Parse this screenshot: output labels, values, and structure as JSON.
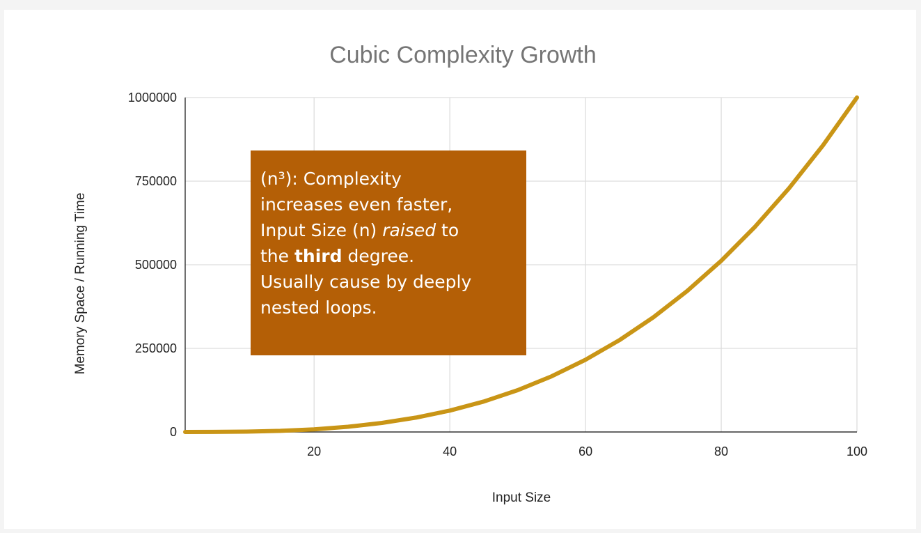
{
  "chart_data": {
    "type": "line",
    "title": "Cubic Complexity Growth",
    "xlabel": "Input Size",
    "ylabel": "Memory Space / Running Time",
    "xlim": [
      1,
      100
    ],
    "ylim": [
      0,
      1000000
    ],
    "x_ticks": [
      "20",
      "40",
      "60",
      "80",
      "100"
    ],
    "y_ticks": [
      "0",
      "250000",
      "500000",
      "750000",
      "1000000"
    ],
    "grid": true,
    "legend": "none",
    "series": [
      {
        "color": "#c99516",
        "x": [
          1,
          5,
          10,
          15,
          20,
          25,
          30,
          35,
          40,
          45,
          50,
          55,
          60,
          65,
          70,
          75,
          80,
          85,
          90,
          95,
          100
        ],
        "y": [
          1,
          125,
          1000,
          3375,
          8000,
          15625,
          27000,
          42875,
          64000,
          91125,
          125000,
          166375,
          216000,
          274625,
          343000,
          421875,
          512000,
          614125,
          729000,
          857375,
          1000000
        ]
      }
    ],
    "annotation": {
      "background": "#b45f06",
      "line1": "(n³): Complexity",
      "line2": "increases even faster,",
      "line3_a": "Input Size (n) ",
      "line3_b": "raised",
      "line3_c": " to",
      "line4_a": "the ",
      "line4_b": "third",
      "line4_c": " degree.",
      "line5": "Usually cause by deeply",
      "line6": "nested loops."
    }
  }
}
